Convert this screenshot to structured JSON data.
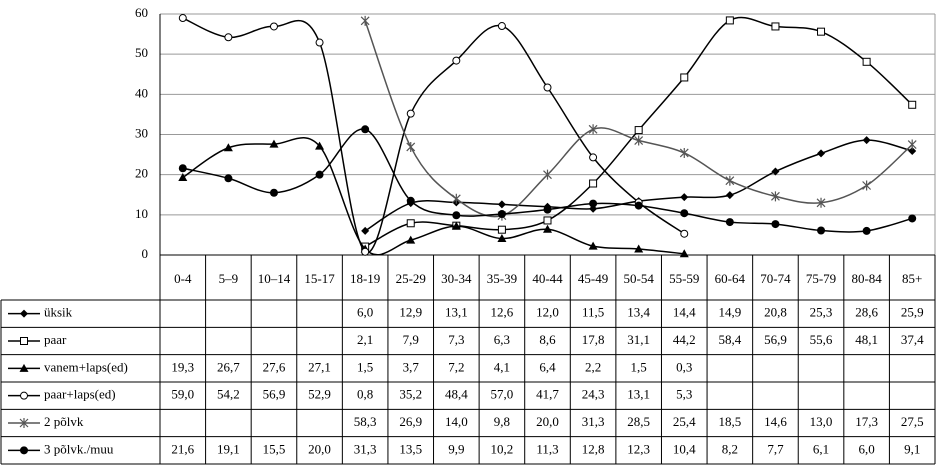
{
  "chart_data": {
    "type": "line",
    "categories": [
      "0-4",
      "5–9",
      "10–14",
      "15-17",
      "18-19",
      "25-29",
      "30-34",
      "35-39",
      "40-44",
      "45-49",
      "50-54",
      "55-59",
      "60-64",
      "70-74",
      "75-79",
      "80-84",
      "85+"
    ],
    "ylim": [
      0,
      60
    ],
    "yticks": [
      0,
      10,
      20,
      30,
      40,
      50,
      60
    ],
    "grid": true,
    "smooth": true,
    "series": [
      {
        "name": "üksik",
        "color": "#000000",
        "marker": "diamond",
        "values": [
          null,
          null,
          null,
          null,
          6.0,
          12.9,
          13.1,
          12.6,
          12.0,
          11.5,
          13.4,
          14.4,
          14.9,
          20.8,
          25.3,
          28.6,
          25.9
        ],
        "value_labels": [
          null,
          null,
          null,
          null,
          "6,0",
          "12,9",
          "13,1",
          "12,6",
          "12,0",
          "11,5",
          "13,4",
          "14,4",
          "14,9",
          "20,8",
          "25,3",
          "28,6",
          "25,9"
        ]
      },
      {
        "name": "paar",
        "color": "#000000",
        "marker": "square-open",
        "values": [
          null,
          null,
          null,
          null,
          2.1,
          7.9,
          7.3,
          6.3,
          8.6,
          17.8,
          31.1,
          44.2,
          58.4,
          56.9,
          55.6,
          48.1,
          37.4
        ],
        "value_labels": [
          null,
          null,
          null,
          null,
          "2,1",
          "7,9",
          "7,3",
          "6,3",
          "8,6",
          "17,8",
          "31,1",
          "44,2",
          "58,4",
          "56,9",
          "55,6",
          "48,1",
          "37,4"
        ]
      },
      {
        "name": "vanem+laps(ed)",
        "color": "#000000",
        "marker": "triangle",
        "values": [
          19.3,
          26.7,
          27.6,
          27.1,
          1.5,
          3.7,
          7.2,
          4.1,
          6.4,
          2.2,
          1.5,
          0.3,
          null,
          null,
          null,
          null,
          null
        ],
        "value_labels": [
          "19,3",
          "26,7",
          "27,6",
          "27,1",
          "1,5",
          "3,7",
          "7,2",
          "4,1",
          "6,4",
          "2,2",
          "1,5",
          "0,3",
          null,
          null,
          null,
          null,
          null
        ]
      },
      {
        "name": "paar+laps(ed)",
        "color": "#000000",
        "marker": "circle-open",
        "values": [
          59.0,
          54.2,
          56.9,
          52.9,
          0.8,
          35.2,
          48.4,
          57.0,
          41.7,
          24.3,
          13.1,
          5.3,
          null,
          null,
          null,
          null,
          null
        ],
        "value_labels": [
          "59,0",
          "54,2",
          "56,9",
          "52,9",
          "0,8",
          "35,2",
          "48,4",
          "57,0",
          "41,7",
          "24,3",
          "13,1",
          "5,3",
          null,
          null,
          null,
          null,
          null
        ]
      },
      {
        "name": "2 põlvk",
        "color": "#555555",
        "marker": "star",
        "values": [
          null,
          null,
          null,
          null,
          58.3,
          26.9,
          14.0,
          9.8,
          20.0,
          31.3,
          28.5,
          25.4,
          18.5,
          14.6,
          13.0,
          17.3,
          27.5
        ],
        "value_labels": [
          null,
          null,
          null,
          null,
          "58,3",
          "26,9",
          "14,0",
          "9,8",
          "20,0",
          "31,3",
          "28,5",
          "25,4",
          "18,5",
          "14,6",
          "13,0",
          "17,3",
          "27,5"
        ]
      },
      {
        "name": "3 põlvk./muu",
        "color": "#000000",
        "marker": "circle",
        "values": [
          21.6,
          19.1,
          15.5,
          20.0,
          31.3,
          13.5,
          9.9,
          10.2,
          11.3,
          12.8,
          12.3,
          10.4,
          8.2,
          7.7,
          6.1,
          6.0,
          9.1
        ],
        "value_labels": [
          "21,6",
          "19,1",
          "15,5",
          "20,0",
          "31,3",
          "13,5",
          "9,9",
          "10,2",
          "11,3",
          "12,8",
          "12,3",
          "10,4",
          "8,2",
          "7,7",
          "6,1",
          "6,0",
          "9,1"
        ]
      }
    ]
  }
}
